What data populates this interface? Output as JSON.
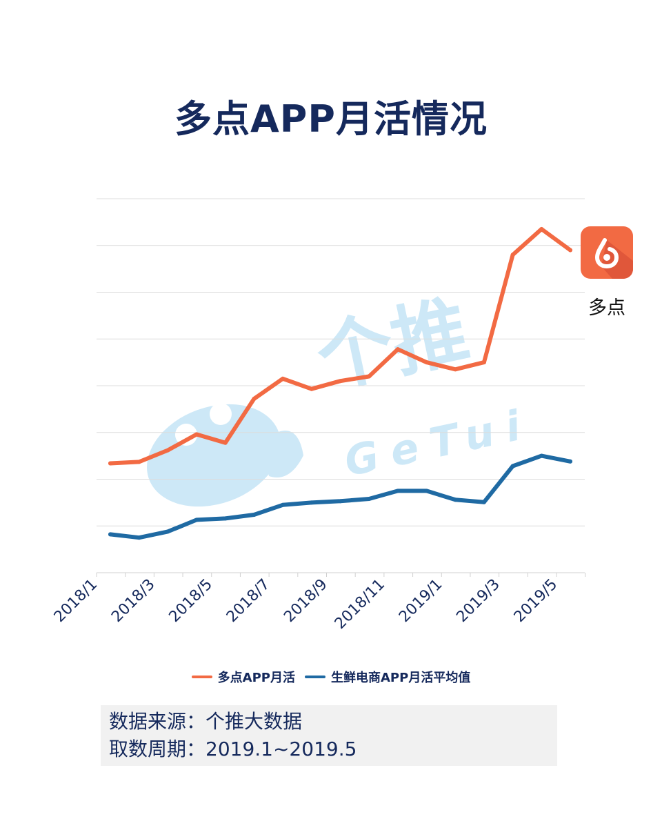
{
  "title": "多点APP月活情况",
  "colors": {
    "accent_orange": "#f26a43",
    "series_blue": "#1f6aa3",
    "title_navy": "#15295c",
    "watermark": "#cde8f7"
  },
  "watermark": {
    "cn": "个推",
    "en": "GeTui"
  },
  "app_badge": {
    "label": "多点",
    "icon": "duodian-logo-icon",
    "color": "#f26a43"
  },
  "chart_data": {
    "type": "line",
    "title": "多点APP月活情况",
    "categories": [
      "2018/1",
      "2018/2",
      "2018/3",
      "2018/4",
      "2018/5",
      "2018/6",
      "2018/7",
      "2018/8",
      "2018/9",
      "2018/10",
      "2018/11",
      "2018/12",
      "2019/1",
      "2019/2",
      "2019/3",
      "2019/4",
      "2019/5"
    ],
    "tick_labels": [
      "2018/1",
      "2018/3",
      "2018/5",
      "2018/7",
      "2018/9",
      "2018/11",
      "2019/1",
      "2019/3",
      "2019/5"
    ],
    "ylim": [
      0,
      8
    ],
    "y_ticks_shown": false,
    "grid": true,
    "legend_position": "bottom",
    "series": [
      {
        "name": "多点APP月活",
        "color": "#f26a43",
        "values": [
          2.34,
          2.37,
          2.62,
          2.96,
          2.78,
          3.72,
          4.15,
          3.93,
          4.1,
          4.2,
          4.78,
          4.5,
          4.35,
          4.5,
          6.8,
          7.35,
          6.9
        ]
      },
      {
        "name": "生鲜电商APP月活平均值",
        "color": "#1f6aa3",
        "values": [
          0.82,
          0.75,
          0.88,
          1.13,
          1.16,
          1.24,
          1.45,
          1.5,
          1.53,
          1.58,
          1.75,
          1.75,
          1.56,
          1.51,
          2.28,
          2.5,
          2.38
        ]
      }
    ]
  },
  "source": {
    "line1": "数据来源：个推大数据",
    "line2": "取数周期：2019.1~2019.5"
  }
}
